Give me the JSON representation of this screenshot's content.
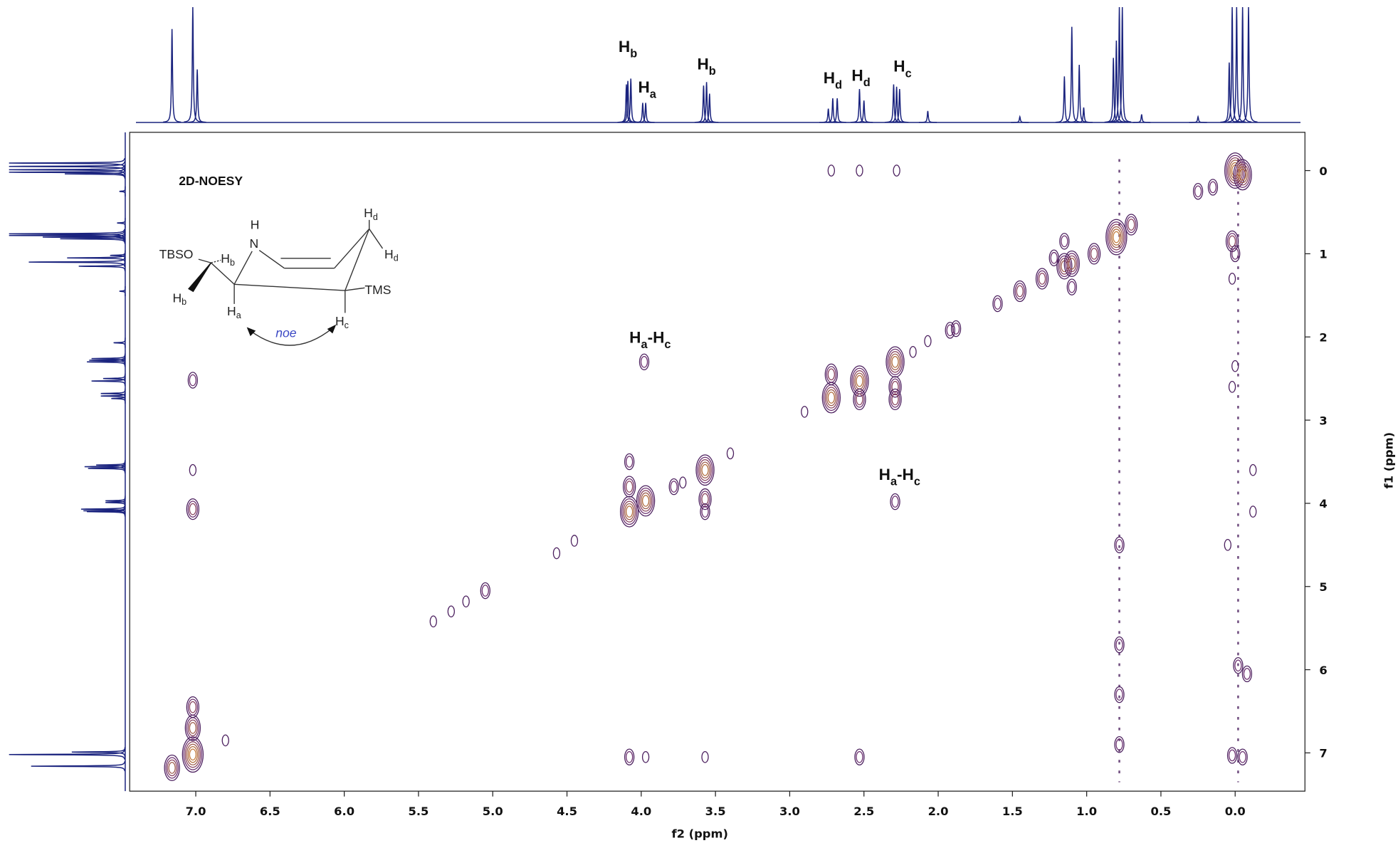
{
  "chart_data": {
    "type": "noesy",
    "title": "2D-NOESY",
    "x_label": "f2 (ppm)",
    "y_label": "f1 (ppm)",
    "xlim": [
      7.445,
      -0.47
    ],
    "ylim": [
      -0.46,
      7.46
    ],
    "xticks": [
      {
        "value": 7,
        "label": "7.0"
      },
      6.5,
      {
        "value": 6,
        "label": "6.0"
      },
      5.5,
      {
        "value": 5,
        "label": "5.0"
      },
      4.5,
      {
        "value": 4,
        "label": "4.0"
      },
      3.5,
      {
        "value": 3,
        "label": "3.0"
      },
      2.5,
      {
        "value": 2,
        "label": "2.0"
      },
      1.5,
      {
        "value": 1,
        "label": "1.0"
      },
      0.5,
      {
        "value": 0,
        "label": "0.0"
      }
    ],
    "yticks": [
      0,
      1,
      2,
      3,
      4,
      5,
      6,
      7
    ],
    "projection_color": "#1a237e",
    "f2_projection": {
      "x": [
        7.16,
        7.02,
        6.99,
        4.1,
        4.09,
        4.07,
        3.99,
        3.97,
        3.58,
        3.56,
        3.54,
        2.74,
        2.71,
        2.68,
        2.53,
        2.5,
        2.3,
        2.28,
        2.26,
        2.07,
        1.45,
        1.15,
        1.1,
        1.05,
        1.02,
        0.82,
        0.8,
        0.78,
        0.76,
        0.63,
        0.25,
        0.04,
        0.02,
        -0.01,
        -0.05,
        -0.09
      ],
      "values": [
        81,
        100,
        46,
        33,
        36,
        38,
        17,
        17,
        32,
        35,
        25,
        12,
        21,
        21,
        29,
        19,
        33,
        31,
        29,
        10,
        5,
        40,
        83,
        50,
        13,
        56,
        71,
        100,
        100,
        7,
        5,
        52,
        100,
        100,
        100,
        100
      ]
    },
    "peak_labels": [
      {
        "main": "H",
        "sub": "b",
        "x": 4.09,
        "y": 61
      },
      {
        "main": "H",
        "sub": "a",
        "x": 3.96,
        "y": 26
      },
      {
        "main": "H",
        "sub": "b",
        "x": 3.56,
        "y": 46
      },
      {
        "main": "H",
        "sub": "d",
        "x": 2.71,
        "y": 34
      },
      {
        "main": "H",
        "sub": "d",
        "x": 2.52,
        "y": 36
      },
      {
        "main": "H",
        "sub": "c",
        "x": 2.24,
        "y": 44
      }
    ],
    "cross_labels": [
      {
        "parts": [
          {
            "main": "H",
            "sub": "a"
          },
          {
            "main": "-H",
            "sub": "c"
          }
        ],
        "x": 3.94,
        "y": 2.07
      },
      {
        "parts": [
          {
            "main": "H",
            "sub": "a"
          },
          {
            "main": "-H",
            "sub": "c"
          }
        ],
        "x": 2.26,
        "y": 3.72
      }
    ],
    "contour_colors": [
      "#4b1f5e",
      "#6a2d6e",
      "#86405c",
      "#9c5a4a",
      "#b06b3a",
      "#c27a3a"
    ],
    "cross_peaks": {
      "x": [
        7.16,
        7.02,
        7.02,
        7.02,
        6.8,
        5.4,
        5.28,
        5.18,
        5.05,
        4.57,
        4.45,
        4.08,
        4.08,
        3.97,
        3.78,
        3.72,
        3.57,
        3.57,
        3.57,
        3.4,
        2.9,
        2.72,
        2.72,
        2.53,
        2.53,
        2.29,
        2.29,
        2.29,
        2.17,
        2.07,
        1.92,
        1.88,
        1.6,
        1.45,
        1.3,
        1.15,
        1.1,
        0.95,
        0.8,
        0.7,
        0.0,
        -0.05,
        0.25,
        0.15,
        2.72,
        2.53,
        2.28,
        7.02,
        7.02,
        7.02,
        3.98,
        2.29,
        4.08,
        3.97,
        3.57,
        2.53,
        4.08,
        1.15,
        1.1,
        1.22,
        0.02,
        0.0,
        0.02,
        -0.02,
        -0.08,
        0.02,
        -0.05,
        0.0,
        0.02,
        -0.12,
        -0.12,
        0.05,
        0.78,
        0.78,
        0.78,
        0.78
      ],
      "y": [
        7.18,
        7.02,
        6.7,
        6.45,
        6.85,
        5.42,
        5.3,
        5.18,
        5.05,
        4.6,
        4.45,
        4.1,
        3.8,
        3.97,
        3.8,
        3.75,
        3.6,
        3.95,
        4.1,
        3.4,
        2.9,
        2.73,
        2.45,
        2.53,
        2.75,
        2.3,
        2.6,
        2.75,
        2.18,
        2.05,
        1.92,
        1.9,
        1.6,
        1.45,
        1.3,
        1.15,
        1.12,
        1.0,
        0.8,
        0.65,
        0.0,
        0.05,
        0.25,
        0.2,
        0.0,
        0.0,
        0.0,
        2.52,
        3.6,
        4.07,
        2.3,
        3.98,
        7.05,
        7.05,
        7.05,
        7.05,
        3.5,
        0.85,
        1.4,
        1.05,
        0.85,
        1.0,
        1.3,
        5.95,
        6.05,
        7.03,
        7.05,
        2.35,
        2.6,
        3.6,
        4.1,
        4.5,
        4.5,
        5.7,
        6.3,
        6.9
      ],
      "levels": [
        4,
        6,
        4,
        3,
        1,
        1,
        1,
        1,
        2,
        1,
        1,
        5,
        3,
        5,
        2,
        1,
        5,
        3,
        2,
        1,
        1,
        5,
        3,
        5,
        3,
        5,
        3,
        3,
        1,
        1,
        2,
        2,
        2,
        3,
        3,
        4,
        4,
        3,
        6,
        3,
        6,
        5,
        2,
        2,
        1,
        1,
        1,
        2,
        1,
        3,
        2,
        2,
        2,
        1,
        1,
        2,
        2,
        2,
        2,
        2,
        3,
        2,
        1,
        2,
        2,
        2,
        2,
        1,
        1,
        1,
        1,
        1,
        2,
        2,
        2,
        2
      ]
    },
    "t1_noise_x": [
      0.78,
      -0.02
    ],
    "structure": {
      "labels": [
        {
          "main": "TBSO"
        },
        {
          "main": "H"
        },
        {
          "main": "N"
        },
        {
          "main": "H",
          "sub": "b"
        },
        {
          "main": "H",
          "sub": "d"
        },
        {
          "main": "H",
          "sub": "d"
        },
        {
          "main": "TMS"
        },
        {
          "main": "H",
          "sub": "b"
        },
        {
          "main": "H",
          "sub": "a"
        },
        {
          "main": "H",
          "sub": "c"
        },
        {
          "main": "noe"
        }
      ]
    }
  }
}
